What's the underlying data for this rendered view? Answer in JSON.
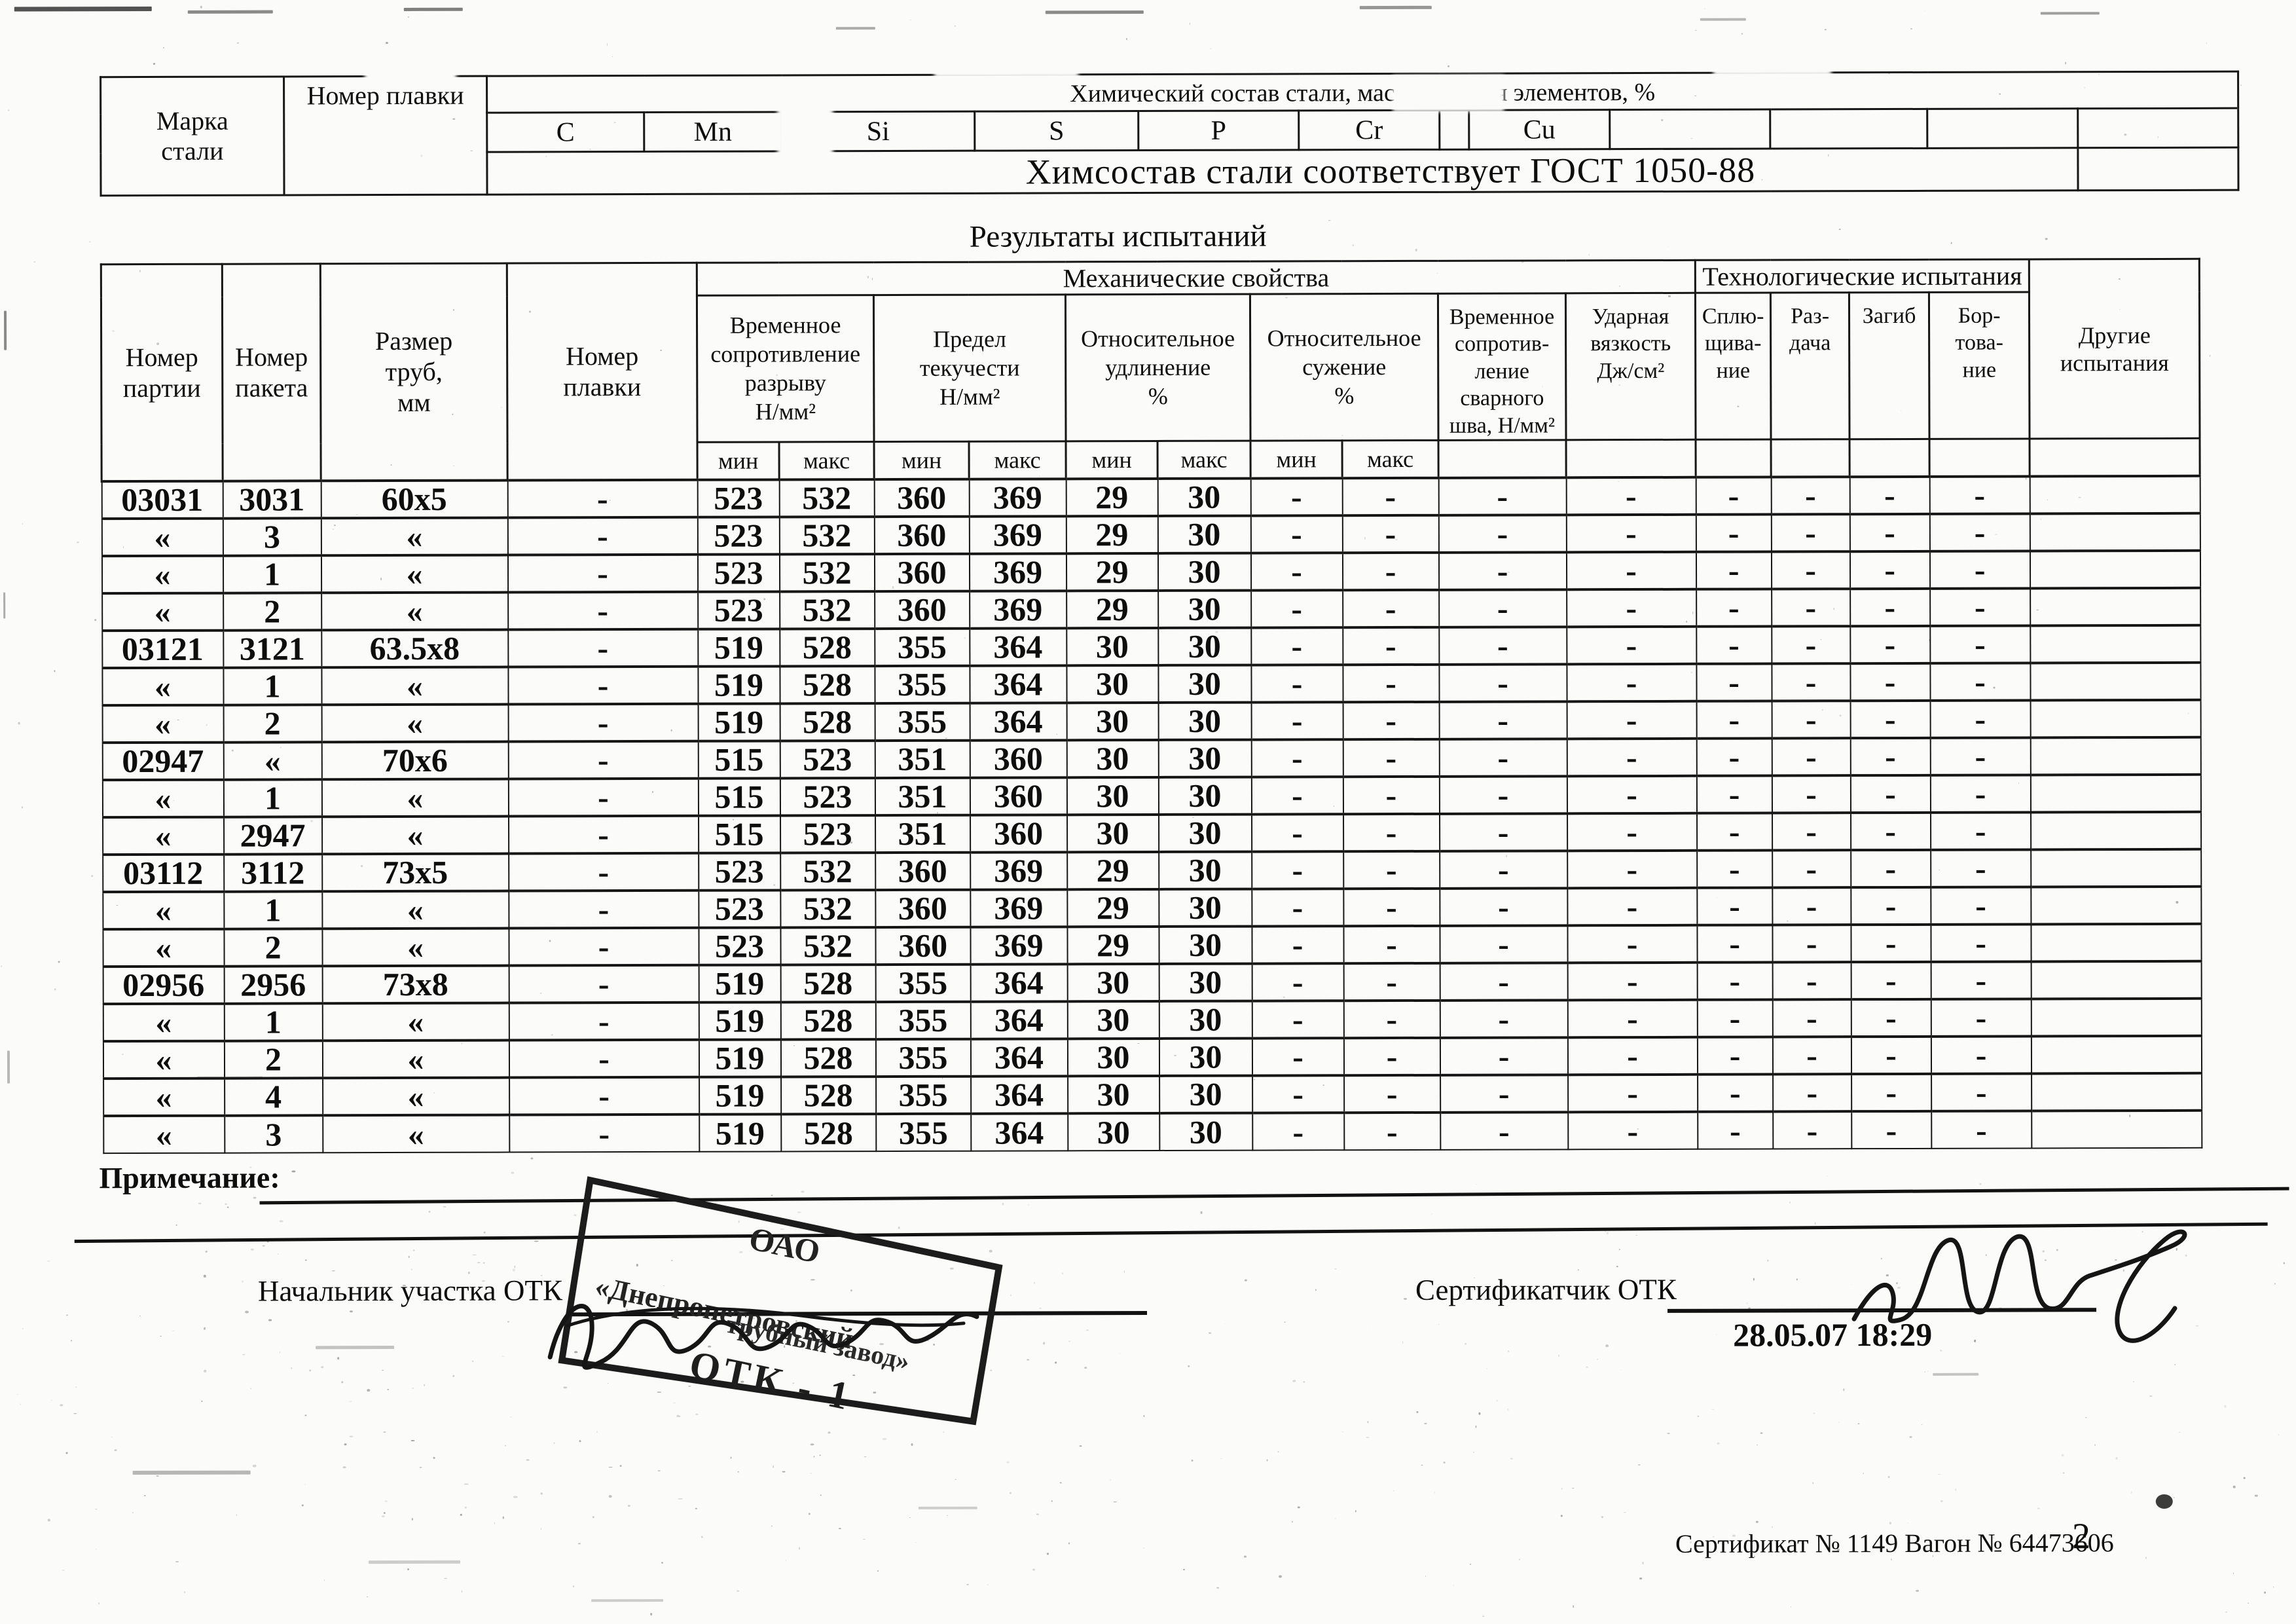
{
  "chem_table": {
    "col_mark": "Марка\nстали",
    "col_melt": "Номер плавки",
    "group_header": "Химический состав стали, массовая доля элементов, %",
    "elements": [
      "C",
      "Mn",
      "Si",
      "S",
      "P",
      "Cr",
      "",
      "Cu",
      "",
      "",
      "",
      ""
    ],
    "conformity_note": "Химсостав стали соответствует ГОСТ 1050-88"
  },
  "results": {
    "title": "Результаты испытаний",
    "mech_group": "Механические свойства",
    "tech_group": "Технологические испытания",
    "col_party": "Номер\nпартии",
    "col_package": "Номер\nпакета",
    "col_size": "Размер\nтруб,\nмм",
    "col_melt": "Номер\nплавки",
    "col_tensile": "Временное\nсопротивление\nразрыву\nН/мм²",
    "col_yield": "Предел\nтекучести\nН/мм²",
    "col_elongation": "Относительное\nудлинение\n%",
    "col_reduction": "Относительное\nсужение\n%",
    "col_weld": "Временное\nсопротив-\nление\nсварного\nшва, Н/мм²",
    "col_impact": "Ударная\nвязкость\nДж/см²",
    "col_flattening": "Сплю-\nщива-\nние",
    "col_expansion": "Раз-\nдача",
    "col_bend": "Загиб",
    "col_flanging": "Бор-\nтова-\nние",
    "col_other": "Другие\nиспытания",
    "min_label": "мин",
    "max_label": "макс",
    "rows": [
      [
        "03031",
        "3031",
        "60x5",
        "-",
        "523",
        "532",
        "360",
        "369",
        "29",
        "30",
        "-",
        "-",
        "-",
        "-",
        "-",
        "-",
        "-",
        "-",
        ""
      ],
      [
        "«",
        "3",
        "«",
        "-",
        "523",
        "532",
        "360",
        "369",
        "29",
        "30",
        "-",
        "-",
        "-",
        "-",
        "-",
        "-",
        "-",
        "-",
        ""
      ],
      [
        "«",
        "1",
        "«",
        "-",
        "523",
        "532",
        "360",
        "369",
        "29",
        "30",
        "-",
        "-",
        "-",
        "-",
        "-",
        "-",
        "-",
        "-",
        ""
      ],
      [
        "«",
        "2",
        "«",
        "-",
        "523",
        "532",
        "360",
        "369",
        "29",
        "30",
        "-",
        "-",
        "-",
        "-",
        "-",
        "-",
        "-",
        "-",
        ""
      ],
      [
        "03121",
        "3121",
        "63.5x8",
        "-",
        "519",
        "528",
        "355",
        "364",
        "30",
        "30",
        "-",
        "-",
        "-",
        "-",
        "-",
        "-",
        "-",
        "-",
        ""
      ],
      [
        "«",
        "1",
        "«",
        "-",
        "519",
        "528",
        "355",
        "364",
        "30",
        "30",
        "-",
        "-",
        "-",
        "-",
        "-",
        "-",
        "-",
        "-",
        ""
      ],
      [
        "«",
        "2",
        "«",
        "-",
        "519",
        "528",
        "355",
        "364",
        "30",
        "30",
        "-",
        "-",
        "-",
        "-",
        "-",
        "-",
        "-",
        "-",
        ""
      ],
      [
        "02947",
        "«",
        "70x6",
        "-",
        "515",
        "523",
        "351",
        "360",
        "30",
        "30",
        "-",
        "-",
        "-",
        "-",
        "-",
        "-",
        "-",
        "-",
        ""
      ],
      [
        "«",
        "1",
        "«",
        "-",
        "515",
        "523",
        "351",
        "360",
        "30",
        "30",
        "-",
        "-",
        "-",
        "-",
        "-",
        "-",
        "-",
        "-",
        ""
      ],
      [
        "«",
        "2947",
        "«",
        "-",
        "515",
        "523",
        "351",
        "360",
        "30",
        "30",
        "-",
        "-",
        "-",
        "-",
        "-",
        "-",
        "-",
        "-",
        ""
      ],
      [
        "03112",
        "3112",
        "73x5",
        "-",
        "523",
        "532",
        "360",
        "369",
        "29",
        "30",
        "-",
        "-",
        "-",
        "-",
        "-",
        "-",
        "-",
        "-",
        ""
      ],
      [
        "«",
        "1",
        "«",
        "-",
        "523",
        "532",
        "360",
        "369",
        "29",
        "30",
        "-",
        "-",
        "-",
        "-",
        "-",
        "-",
        "-",
        "-",
        ""
      ],
      [
        "«",
        "2",
        "«",
        "-",
        "523",
        "532",
        "360",
        "369",
        "29",
        "30",
        "-",
        "-",
        "-",
        "-",
        "-",
        "-",
        "-",
        "-",
        ""
      ],
      [
        "02956",
        "2956",
        "73x8",
        "-",
        "519",
        "528",
        "355",
        "364",
        "30",
        "30",
        "-",
        "-",
        "-",
        "-",
        "-",
        "-",
        "-",
        "-",
        ""
      ],
      [
        "«",
        "1",
        "«",
        "-",
        "519",
        "528",
        "355",
        "364",
        "30",
        "30",
        "-",
        "-",
        "-",
        "-",
        "-",
        "-",
        "-",
        "-",
        ""
      ],
      [
        "«",
        "2",
        "«",
        "-",
        "519",
        "528",
        "355",
        "364",
        "30",
        "30",
        "-",
        "-",
        "-",
        "-",
        "-",
        "-",
        "-",
        "-",
        ""
      ],
      [
        "«",
        "4",
        "«",
        "-",
        "519",
        "528",
        "355",
        "364",
        "30",
        "30",
        "-",
        "-",
        "-",
        "-",
        "-",
        "-",
        "-",
        "-",
        ""
      ],
      [
        "«",
        "3",
        "«",
        "-",
        "519",
        "528",
        "355",
        "364",
        "30",
        "30",
        "-",
        "-",
        "-",
        "-",
        "-",
        "-",
        "-",
        "-",
        ""
      ]
    ]
  },
  "signatures": {
    "note_label": "Примечание:",
    "chief_label": "Начальник участка ОТК",
    "certifier_label": "Сертификатчик ОТК",
    "datetime": "28.05.07 18:29"
  },
  "stamp": {
    "org_type": "ОАО",
    "name_line1": "«Днепропетровский",
    "name_line2": "трубный завод»",
    "dept": "ОТК - 1"
  },
  "footer": {
    "certificate_line": "Сертификат № 1149 Вагон № 64473606",
    "page_number": "2"
  }
}
